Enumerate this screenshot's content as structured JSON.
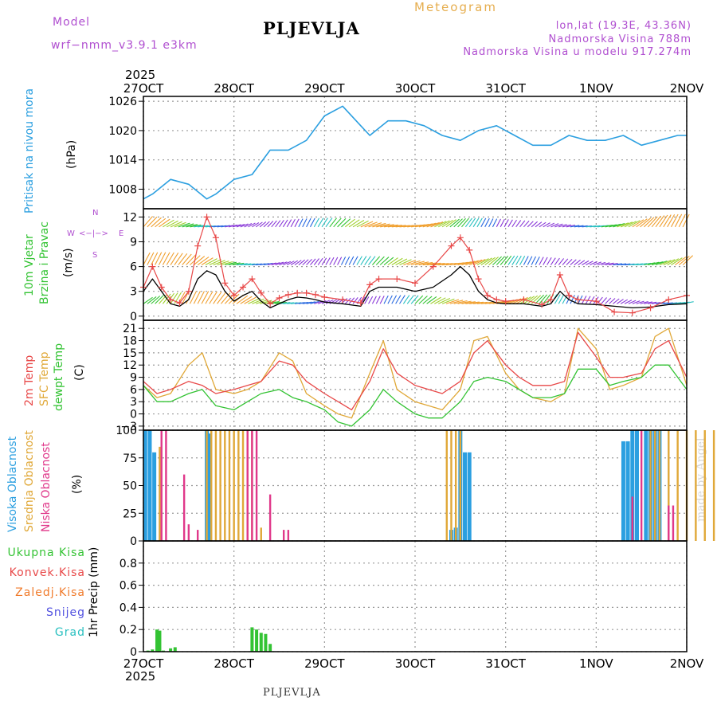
{
  "header": {
    "model_label": "Model",
    "model_name": "wrf−nmm_v3.9.1  e3km",
    "station": "PLJEVLJA",
    "product": "Meteogram",
    "lonlat": "lon,lat (19.3E, 43.36N)",
    "elevation": "Nadmorska Visina 788m",
    "model_elevation": "Nadmorska Visina u modelu 917.274m",
    "footer_station": "PLJEVLJA",
    "credit": "made by Angel",
    "top_year": "2025",
    "bottom_year": "2025"
  },
  "x_axis": {
    "labels": [
      "27OCT",
      "28OCT",
      "29OCT",
      "30OCT",
      "31OCT",
      "1NOV",
      "2NOV"
    ]
  },
  "colors": {
    "pressure": "#2b9fe0",
    "t2m": "#e84848",
    "sfc": "#e0a838",
    "dew": "#33c333",
    "high": "#2b9fe0",
    "mid": "#e0a838",
    "low": "#e0388a",
    "precip": "#33c333",
    "conv": "#e84848",
    "frz": "#f07a2a",
    "snow": "#5050e0",
    "hail": "#2ac0c0",
    "label_purple": "#b04fd0"
  },
  "panels": {
    "pressure": {
      "title": "Pritisak na nivou mora",
      "unit": "(hPa)"
    },
    "wind": {
      "title1": "10m Vjetar",
      "title2": "Brzina i Pravac",
      "unit": "(m/s)",
      "compass_n": "N",
      "compass_w": "W",
      "compass_e": "E",
      "compass_s": "S",
      "compass_arrows": "<−|−>"
    },
    "temp": {
      "t2m": "2m Temp",
      "sfc": "SFC Temp",
      "dew": "dewpt Temp",
      "unit": "(C)"
    },
    "cloud": {
      "high": "Visoka Oblacnost",
      "mid": "Srednja Oblacnost",
      "low": "Niska Oblacnost",
      "unit": "(%)"
    },
    "precip": {
      "total": "Ukupna Kisa",
      "conv": "Konvek.Kisa",
      "frz": "Zaledj.Kisa",
      "snow": "Snijeg",
      "hail": "Grad",
      "unit": "1hr Precip (mm)"
    }
  },
  "chart_data": [
    {
      "type": "line",
      "title": "Pritisak na nivou mora",
      "ylabel": "(hPa)",
      "ylim": [
        1004,
        1027
      ],
      "yticks": [
        1008,
        1014,
        1020,
        1026
      ],
      "x_days": [
        0,
        0.1,
        0.3,
        0.5,
        0.7,
        0.8,
        1.0,
        1.2,
        1.4,
        1.6,
        1.8,
        2.0,
        2.2,
        2.4,
        2.5,
        2.7,
        2.9,
        3.1,
        3.3,
        3.5,
        3.7,
        3.9,
        4.1,
        4.3,
        4.5,
        4.7,
        4.9,
        5.1,
        5.3,
        5.5,
        5.7,
        5.9,
        6.0
      ],
      "series": [
        {
          "name": "Pritisak",
          "values": [
            1006,
            1007,
            1010,
            1009,
            1006,
            1007,
            1010,
            1011,
            1016,
            1016,
            1018,
            1023,
            1025,
            1021,
            1019,
            1022,
            1022,
            1021,
            1019,
            1018,
            1020,
            1021,
            1019,
            1017,
            1017,
            1019,
            1018,
            1018,
            1019,
            1017,
            1018,
            1019,
            1019
          ]
        }
      ]
    },
    {
      "type": "line",
      "title": "10m Vjetar Brzina i Pravac",
      "ylabel": "(m/s)",
      "ylim": [
        -0.5,
        13
      ],
      "yticks": [
        0,
        3,
        6,
        9,
        12
      ],
      "x_days": [
        0,
        0.1,
        0.2,
        0.3,
        0.4,
        0.5,
        0.6,
        0.7,
        0.8,
        0.9,
        1.0,
        1.1,
        1.2,
        1.3,
        1.4,
        1.5,
        1.6,
        1.7,
        1.8,
        1.9,
        2.0,
        2.2,
        2.4,
        2.5,
        2.6,
        2.8,
        3.0,
        3.2,
        3.4,
        3.5,
        3.6,
        3.7,
        3.8,
        3.9,
        4.0,
        4.2,
        4.4,
        4.5,
        4.6,
        4.7,
        4.8,
        5.0,
        5.2,
        5.4,
        5.6,
        5.8,
        6.0
      ],
      "series": [
        {
          "name": "Mean wind",
          "values": [
            3,
            4.5,
            3,
            1.5,
            1.2,
            2,
            4.5,
            5.5,
            5,
            3,
            1.8,
            2.5,
            3,
            1.8,
            1,
            1.5,
            2,
            2.3,
            2.2,
            2,
            1.7,
            1.5,
            1.2,
            3,
            3.5,
            3.5,
            3,
            3.5,
            5,
            6,
            5,
            3,
            2,
            1.6,
            1.5,
            1.5,
            1.2,
            1.5,
            3,
            2,
            1.5,
            1.4,
            1.2,
            1,
            1.1,
            1.4,
            1.5
          ]
        },
        {
          "name": "Gust",
          "values": [
            3.5,
            6,
            3.5,
            2,
            1.6,
            3,
            8.5,
            12,
            9.5,
            4,
            2.5,
            3.5,
            4.5,
            2.8,
            1.5,
            2.2,
            2.6,
            2.8,
            2.8,
            2.6,
            2.3,
            2,
            1.6,
            3.8,
            4.5,
            4.5,
            4,
            6,
            8.5,
            9.5,
            8,
            4.5,
            2.5,
            2,
            1.8,
            2,
            1.4,
            2,
            5,
            2.5,
            2,
            1.8,
            0.5,
            0.4,
            1,
            2,
            2.5
          ]
        }
      ]
    },
    {
      "type": "line",
      "title": "Temperature",
      "ylabel": "(C)",
      "ylim": [
        -4,
        23
      ],
      "yticks": [
        -3,
        0,
        3,
        6,
        9,
        12,
        15,
        18,
        21
      ],
      "x_days": [
        0,
        0.15,
        0.3,
        0.5,
        0.65,
        0.8,
        1.0,
        1.15,
        1.3,
        1.5,
        1.65,
        1.8,
        2.0,
        2.15,
        2.3,
        2.5,
        2.65,
        2.8,
        3.0,
        3.15,
        3.3,
        3.5,
        3.65,
        3.8,
        4.0,
        4.15,
        4.3,
        4.5,
        4.65,
        4.8,
        5.0,
        5.15,
        5.3,
        5.5,
        5.65,
        5.8,
        6.0
      ],
      "series": [
        {
          "name": "2m Temp",
          "values": [
            8,
            5,
            6,
            8,
            7,
            5,
            6,
            7,
            8,
            13,
            12,
            8,
            5,
            3,
            1,
            8,
            16,
            10,
            7,
            6,
            5,
            8,
            15,
            18,
            12,
            9,
            7,
            7,
            8,
            20,
            14,
            9,
            9,
            10,
            16,
            18,
            9
          ]
        },
        {
          "name": "SFC Temp",
          "values": [
            7,
            4,
            5,
            12,
            15,
            6,
            5,
            6,
            8,
            15,
            13,
            5,
            2,
            0,
            -1,
            10,
            18,
            6,
            3,
            2,
            1,
            6,
            18,
            19,
            10,
            6,
            4,
            3,
            5,
            21,
            16,
            6,
            7,
            9,
            19,
            21,
            7
          ]
        },
        {
          "name": "dewpt Temp",
          "values": [
            7,
            3,
            3,
            5,
            6,
            2,
            1,
            3,
            5,
            6,
            4,
            3,
            1,
            -2,
            -3,
            1,
            6,
            3,
            0,
            -1,
            -1,
            3,
            8,
            9,
            8,
            6,
            4,
            4,
            5,
            11,
            11,
            7,
            8,
            9,
            12,
            12,
            6
          ]
        }
      ]
    },
    {
      "type": "bar",
      "title": "Oblacnost",
      "ylabel": "(%)",
      "ylim": [
        0,
        100
      ],
      "yticks": [
        0,
        25,
        50,
        75,
        100
      ],
      "series": [
        {
          "name": "Visoka Oblacnost",
          "x_days": [
            0.02,
            0.07,
            0.12,
            0.7,
            0.72,
            3.4,
            3.45,
            3.5,
            3.55,
            3.6,
            5.3,
            5.35,
            5.4,
            5.45,
            5.55,
            5.6,
            5.65,
            5.7
          ],
          "values": [
            100,
            100,
            80,
            100,
            97,
            10,
            12,
            100,
            80,
            80,
            90,
            90,
            100,
            100,
            100,
            100,
            100,
            100
          ]
        },
        {
          "name": "Srednja Oblacnost",
          "x_days": [
            0.18,
            0.7,
            0.75,
            0.8,
            0.85,
            0.9,
            0.95,
            1.0,
            1.05,
            1.1,
            1.15,
            1.2,
            1.3,
            3.35,
            3.4,
            3.45,
            3.5,
            5.6,
            5.65,
            5.7,
            5.8,
            5.9,
            6.0,
            6.1,
            6.2,
            6.3,
            6.4
          ],
          "values": [
            85,
            100,
            100,
            100,
            100,
            100,
            100,
            100,
            100,
            100,
            100,
            100,
            12,
            100,
            100,
            100,
            100,
            100,
            100,
            100,
            100,
            100,
            100,
            100,
            100,
            100,
            80
          ]
        },
        {
          "name": "Niska Oblacnost",
          "x_days": [
            0.2,
            0.25,
            0.45,
            0.5,
            0.6,
            1.15,
            1.2,
            1.25,
            1.4,
            1.55,
            1.6,
            5.4,
            5.5,
            5.8,
            5.85
          ],
          "values": [
            100,
            100,
            60,
            15,
            10,
            100,
            100,
            100,
            42,
            10,
            10,
            40,
            100,
            32,
            32
          ]
        }
      ]
    },
    {
      "type": "bar",
      "title": "1hr Precip",
      "ylabel": "1hr Precip (mm)",
      "ylim": [
        0,
        1
      ],
      "yticks": [
        0,
        0.2,
        0.4,
        0.6,
        0.8
      ],
      "series": [
        {
          "name": "Ukupna Kisa",
          "x_days": [
            0.05,
            0.1,
            0.15,
            0.18,
            0.22,
            0.3,
            0.35,
            1.2,
            1.25,
            1.3,
            1.35,
            1.4
          ],
          "values": [
            0.01,
            0.02,
            0.2,
            0.19,
            0.01,
            0.03,
            0.04,
            0.22,
            0.2,
            0.17,
            0.16,
            0.07
          ]
        },
        {
          "name": "Konvek.Kisa",
          "x_days": [],
          "values": []
        },
        {
          "name": "Zaledj.Kisa",
          "x_days": [],
          "values": []
        },
        {
          "name": "Snijeg",
          "x_days": [],
          "values": []
        },
        {
          "name": "Grad",
          "x_days": [],
          "values": []
        }
      ]
    }
  ]
}
